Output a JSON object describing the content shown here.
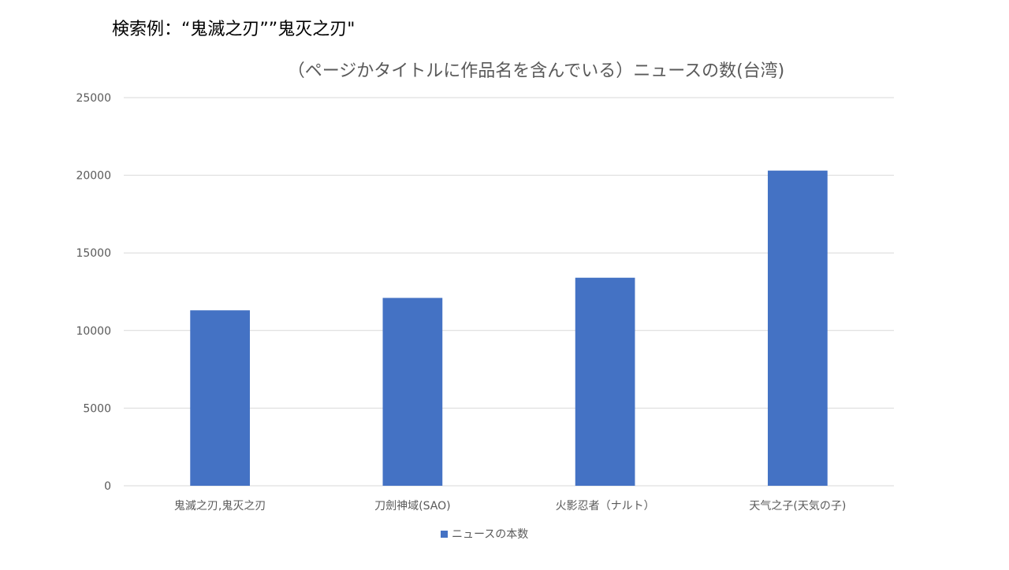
{
  "search_caption": "検索例：“鬼滅之刃””鬼灭之刃\"",
  "chart_data": {
    "type": "bar",
    "title": "（ページかタイトルに作品名を含んでいる）ニュースの数(台湾)",
    "categories": [
      "鬼滅之刃,鬼灭之刃",
      "刀劍神域(SAO)",
      "火影忍者（ナルト）",
      "天气之子(天気の子)"
    ],
    "series": [
      {
        "name": "ニュースの本数",
        "values": [
          11300,
          12100,
          13400,
          20300
        ]
      }
    ],
    "ylim": [
      0,
      25000
    ],
    "yticks": [
      0,
      5000,
      10000,
      15000,
      20000,
      25000
    ],
    "grid": true,
    "legend": "bottom",
    "colors": {
      "bar": "#4472C4",
      "grid": "#D9D9D9",
      "text": "#595959"
    }
  }
}
